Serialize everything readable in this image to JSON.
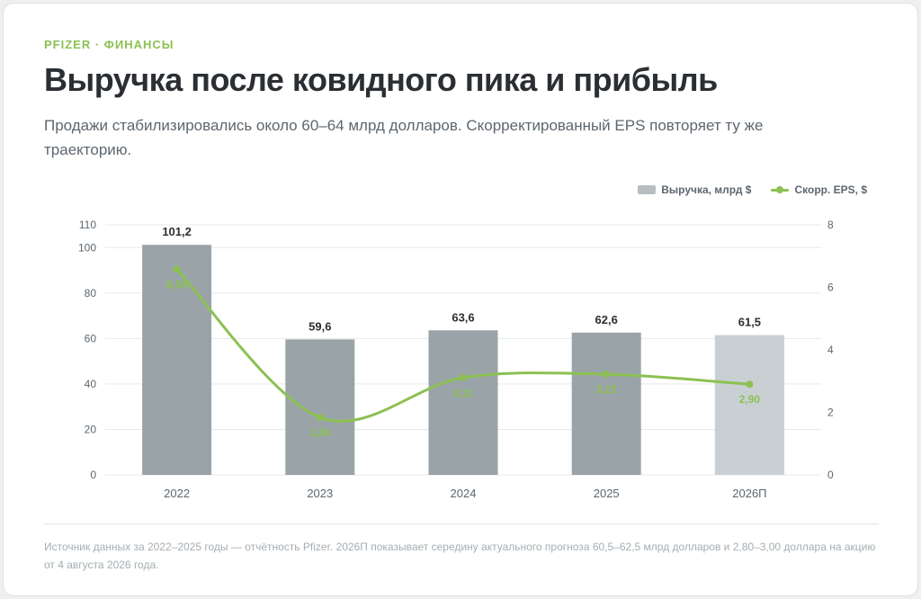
{
  "header": {
    "eyebrow": "PFIZER · ФИНАНСЫ",
    "title": "Выручка после ковидного пика и прибыль",
    "subtitle": "Продажи стабилизировались около 60–64 млрд долларов. Скорректированный EPS повторяет ту же траекторию."
  },
  "legend": {
    "revenue": "Выручка, млрд $",
    "eps": "Скорр. EPS, $"
  },
  "colors": {
    "bar": "#9aa4a8",
    "bar_forecast": "#c9d0d3",
    "line": "#8cc152",
    "grid": "#e6e9eb",
    "axis_text": "#5d666e",
    "value_text": "#2b2f33"
  },
  "chart_data": {
    "type": "bar",
    "categories": [
      "2022",
      "2023",
      "2024",
      "2025",
      "2026П"
    ],
    "series": [
      {
        "name": "Выручка, млрд $",
        "type": "bar",
        "axis": "left",
        "values": [
          101.2,
          59.6,
          63.6,
          62.6,
          61.5
        ],
        "labels": [
          "101,2",
          "59,6",
          "63,6",
          "62,6",
          "61,5"
        ],
        "forecast": [
          false,
          false,
          false,
          false,
          true
        ]
      },
      {
        "name": "Скорр. EPS, $",
        "type": "line",
        "axis": "right",
        "values": [
          6.58,
          1.84,
          3.11,
          3.22,
          2.9
        ],
        "labels": [
          "6,58",
          "1,84",
          "3,11",
          "3,22",
          "2,90"
        ]
      }
    ],
    "y_left": {
      "ylim": [
        0,
        110
      ],
      "ticks": [
        0,
        20,
        40,
        60,
        80,
        100,
        110
      ]
    },
    "y_right": {
      "ylim": [
        0,
        8
      ],
      "ticks": [
        0,
        2,
        4,
        6,
        8
      ]
    },
    "grid": true,
    "legend_position": "top-right"
  },
  "footer": {
    "source": "Источник данных за 2022–2025 годы — отчётность Pfizer. 2026П показывает середину актуального прогноза 60,5–62,5 млрд долларов и 2,80–3,00 доллара на акцию от 4 августа 2026 года."
  }
}
